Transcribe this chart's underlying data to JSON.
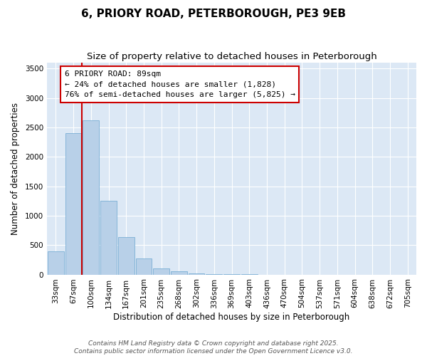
{
  "title_line1": "6, PRIORY ROAD, PETERBOROUGH, PE3 9EB",
  "title_line2": "Size of property relative to detached houses in Peterborough",
  "xlabel": "Distribution of detached houses by size in Peterborough",
  "ylabel": "Number of detached properties",
  "bar_labels": [
    "33sqm",
    "67sqm",
    "100sqm",
    "134sqm",
    "167sqm",
    "201sqm",
    "235sqm",
    "268sqm",
    "302sqm",
    "336sqm",
    "369sqm",
    "403sqm",
    "436sqm",
    "470sqm",
    "504sqm",
    "537sqm",
    "571sqm",
    "604sqm",
    "638sqm",
    "672sqm",
    "705sqm"
  ],
  "bar_values": [
    390,
    2400,
    2620,
    1250,
    640,
    270,
    105,
    55,
    18,
    5,
    2,
    1,
    0,
    0,
    0,
    0,
    0,
    0,
    0,
    0,
    0
  ],
  "bar_color": "#b8d0e8",
  "bar_edge_color": "#7aaed4",
  "fig_background_color": "#ffffff",
  "plot_background_color": "#dce8f5",
  "grid_color": "#ffffff",
  "vline_x_index": 1.5,
  "vline_color": "#cc0000",
  "annotation_line1": "6 PRIORY ROAD: 89sqm",
  "annotation_line2": "← 24% of detached houses are smaller (1,828)",
  "annotation_line3": "76% of semi-detached houses are larger (5,825) →",
  "ylim": [
    0,
    3600
  ],
  "yticks": [
    0,
    500,
    1000,
    1500,
    2000,
    2500,
    3000,
    3500
  ],
  "title_fontsize": 11,
  "subtitle_fontsize": 9.5,
  "axis_label_fontsize": 8.5,
  "tick_fontsize": 7.5,
  "annotation_fontsize": 8,
  "footer_fontsize": 6.5,
  "footer_line1": "Contains HM Land Registry data © Crown copyright and database right 2025.",
  "footer_line2": "Contains public sector information licensed under the Open Government Licence v3.0."
}
